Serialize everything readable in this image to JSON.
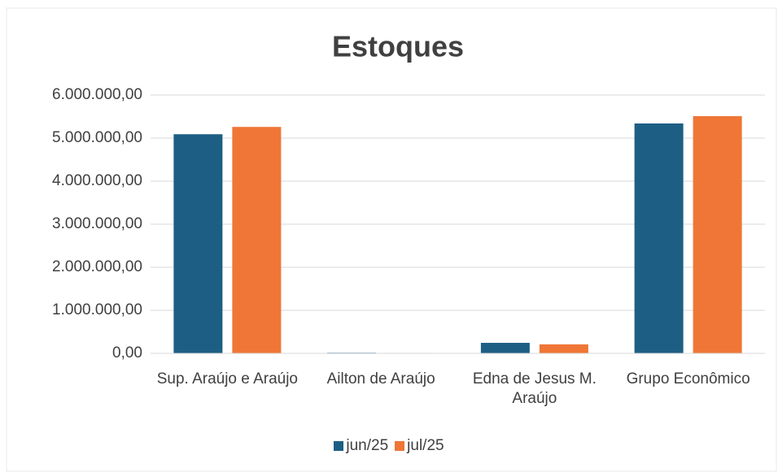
{
  "chart_data": {
    "type": "bar",
    "title": "Estoques",
    "categories": [
      "Sup. Araújo e Araújo",
      "Ailton de Araújo",
      "Edna de Jesus M. Araújo",
      "Grupo Econômico"
    ],
    "series": [
      {
        "name": "jun/25",
        "color": "#1d5f84",
        "values": [
          5090000,
          15000,
          245000,
          5340000
        ]
      },
      {
        "name": "jul/25",
        "color": "#ef7636",
        "values": [
          5260000,
          10000,
          210000,
          5510000
        ]
      }
    ],
    "ylim": [
      0,
      6000000
    ],
    "yticks": [
      {
        "value": 0,
        "label": "0,00"
      },
      {
        "value": 1000000,
        "label": "1.000.000,00"
      },
      {
        "value": 2000000,
        "label": "2.000.000,00"
      },
      {
        "value": 3000000,
        "label": "3.000.000,00"
      },
      {
        "value": 4000000,
        "label": "4.000.000,00"
      },
      {
        "value": 5000000,
        "label": "5.000.000,00"
      },
      {
        "value": 6000000,
        "label": "6.000.000,00"
      }
    ],
    "grid": true,
    "legend": "bottom"
  }
}
